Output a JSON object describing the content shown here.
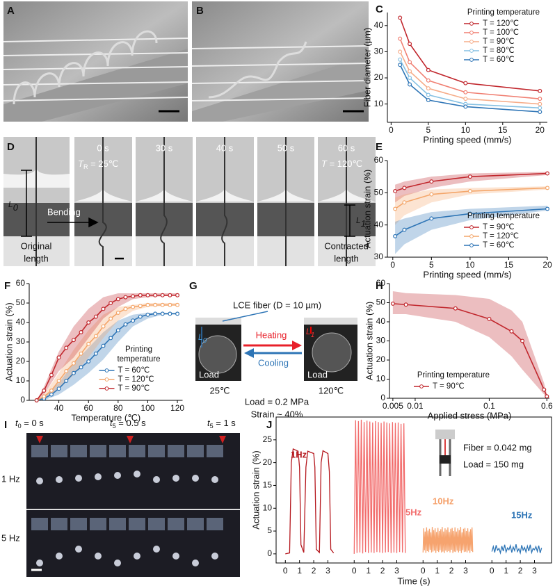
{
  "chart_data": [
    {
      "type": "line",
      "xlabel": "Printing speed (mm/s)",
      "ylabel": "Fiber diameter (µm)",
      "legend_title": "Printing temperature",
      "legend": "upper right",
      "x": [
        1.2,
        2.5,
        5,
        10,
        20
      ],
      "xlim": [
        -0.5,
        21
      ],
      "xticks": [
        0,
        5,
        10,
        15,
        20
      ],
      "ylim": [
        3,
        45
      ],
      "yticks": [
        10,
        20,
        30,
        40
      ],
      "series": [
        {
          "name": "T = 120℃",
          "color": "#c1272d",
          "values": [
            43,
            33,
            23,
            18,
            15
          ]
        },
        {
          "name": "T = 100℃",
          "color": "#f07f72",
          "values": [
            35,
            26,
            19,
            14.5,
            12
          ]
        },
        {
          "name": "T = 90℃",
          "color": "#f6ad8a",
          "values": [
            30,
            22.5,
            16,
            12,
            10
          ]
        },
        {
          "name": "T = 80℃",
          "color": "#86c1e3",
          "values": [
            27,
            20,
            13.5,
            10,
            8.5
          ]
        },
        {
          "name": "T = 60℃",
          "color": "#2e75b6",
          "values": [
            25,
            17.5,
            11.5,
            9,
            7
          ]
        }
      ]
    },
    {
      "type": "line",
      "xlabel": "Printing speed (mm/s)",
      "ylabel": "Actuation strain (%)",
      "legend_title": "Printing temperature",
      "legend": "lower right",
      "x": [
        0.3,
        1.5,
        5,
        10,
        20
      ],
      "xlim": [
        -0.7,
        20
      ],
      "xticks": [
        0,
        5,
        10,
        15,
        20
      ],
      "ylim": [
        30,
        60
      ],
      "yticks": [
        30,
        40,
        50,
        60
      ],
      "series": [
        {
          "name": "T = 90℃",
          "color": "#c1272d",
          "values": [
            50.5,
            51.5,
            53.5,
            55,
            56
          ],
          "band": {
            "lower": [
              47,
              49,
              51.5,
              53.5,
              55.5
            ],
            "upper": [
              52.5,
              53.5,
              55,
              56,
              56.5
            ]
          }
        },
        {
          "name": "T = 120℃",
          "color": "#f4a66a",
          "values": [
            45,
            47,
            49.5,
            50.5,
            51.5
          ],
          "band": {
            "lower": [
              40,
              43,
              47,
              49.5,
              51
            ],
            "upper": [
              48.5,
              49.5,
              51,
              51.5,
              52
            ]
          }
        },
        {
          "name": "T = 60℃",
          "color": "#2e75b6",
          "values": [
            36.5,
            38.5,
            42,
            43.5,
            45
          ],
          "band": {
            "lower": [
              31,
              34,
              38.5,
              41.5,
              44.5
            ],
            "upper": [
              41,
              42,
              44,
              45,
              46
            ]
          }
        }
      ]
    },
    {
      "type": "line",
      "xlabel": "Temperature (℃)",
      "ylabel": "Actuation strain (%)",
      "legend_title": [
        "Printing",
        "temperature"
      ],
      "legend": "lower right",
      "x": [
        25,
        30,
        35,
        40,
        45,
        50,
        55,
        60,
        65,
        70,
        75,
        80,
        85,
        90,
        95,
        100,
        105,
        110,
        115,
        120
      ],
      "xlim": [
        20,
        123.5
      ],
      "xticks": [
        40,
        60,
        80,
        100,
        120
      ],
      "ylim": [
        0,
        60
      ],
      "yticks": [
        0,
        10,
        20,
        30,
        40,
        50,
        60
      ],
      "series": [
        {
          "name": "T = 60℃",
          "color": "#2e75b6",
          "values": [
            0,
            1,
            3,
            6,
            10,
            14,
            17,
            20,
            24,
            28,
            32,
            36,
            39,
            41,
            43,
            44,
            44.5,
            44.5,
            44.5,
            44.5
          ],
          "band": {
            "x": [
              25,
              30,
              40,
              50,
              60,
              70,
              80,
              90,
              100,
              110,
              120
            ],
            "lower": [
              0,
              0,
              3,
              8,
              14,
              21,
              30,
              38,
              42,
              44,
              44.5
            ],
            "upper": [
              0,
              2,
              9,
              19,
              27,
              35,
              41,
              44,
              45,
              45,
              45
            ]
          }
        },
        {
          "name": "T = 120℃",
          "color": "#f4a66a",
          "values": [
            0,
            2,
            5,
            10,
            15,
            19,
            24,
            29,
            33,
            38,
            42,
            45,
            47,
            48,
            48.5,
            49,
            49,
            49,
            49,
            49
          ],
          "band": {
            "x": [
              25,
              30,
              40,
              50,
              60,
              70,
              80,
              90,
              100,
              110,
              120
            ],
            "lower": [
              0,
              1,
              6,
              13,
              22,
              32,
              41,
              46,
              48,
              48.5,
              49
            ],
            "upper": [
              0,
              3,
              14,
              26,
              36,
              44,
              48,
              49,
              50,
              50,
              50
            ]
          }
        },
        {
          "name": "T = 90℃",
          "color": "#c1272d",
          "values": [
            0,
            5,
            13,
            22,
            27,
            31,
            35,
            40,
            43,
            47,
            50,
            52,
            53,
            53.5,
            54,
            54,
            54,
            54,
            54,
            54
          ],
          "band": {
            "x": [
              25,
              30,
              40,
              50,
              60,
              70,
              80,
              90,
              100,
              110,
              120
            ],
            "lower": [
              0,
              3,
              15,
              22,
              32,
              42,
              48,
              52,
              53,
              53.5,
              54
            ],
            "upper": [
              0,
              7,
              25,
              38,
              47,
              53,
              55,
              55,
              55,
              55,
              55
            ]
          }
        }
      ]
    },
    {
      "type": "line",
      "xlabel": "Applied stress (MPa)",
      "ylabel": "Actuation strain (%)",
      "legend_title": "Printing temperature",
      "legend": "lower left",
      "xlog": true,
      "x": [
        0.005,
        0.0075,
        0.035,
        0.1,
        0.2,
        0.28,
        0.55,
        0.6
      ],
      "xlim": [
        0.0045,
        0.65
      ],
      "xticks": [
        0.005,
        0.01,
        0.1,
        0.6
      ],
      "ylim": [
        0,
        60
      ],
      "yticks": [
        0,
        10,
        20,
        30,
        40,
        50,
        60
      ],
      "series": [
        {
          "name": "T = 90℃",
          "color": "#c1272d",
          "values": [
            49.5,
            49,
            47,
            41.5,
            35,
            30,
            4.5,
            1
          ],
          "band": {
            "lower": [
              44,
              44,
              40,
              32,
              22,
              15,
              2,
              0
            ],
            "upper": [
              56,
              55,
              54,
              52,
              46,
              40,
              8,
              2
            ]
          }
        }
      ]
    },
    {
      "type": "multi-line",
      "xlabel": "Time (s)",
      "ylabel": "Actuation strain (%)",
      "xlim": [
        -0.65,
        4.2
      ],
      "xticks": [
        0,
        1,
        2,
        3
      ],
      "ylim": [
        -2,
        30
      ],
      "yticks": [
        0,
        5,
        10,
        15,
        20,
        25
      ],
      "notes": [
        "Fiber = 0.042 mg",
        "Load = 150 mg"
      ],
      "series": [
        {
          "name": "1Hz",
          "color": "#b5171d",
          "x": [
            0,
            0.3,
            0.42,
            0.55,
            0.9,
            1.0,
            1.1,
            1.3,
            1.45,
            1.58,
            2.0,
            2.08,
            2.18,
            2.4,
            2.52,
            2.65,
            3.0,
            3.1,
            3.2,
            3.4
          ],
          "values": [
            0,
            0.2,
            20,
            23,
            22.5,
            19,
            2,
            0.3,
            19,
            22.5,
            22,
            19,
            1,
            0.3,
            20,
            22.6,
            22,
            18,
            1,
            0.2
          ]
        },
        {
          "name": "5Hz",
          "color": "#f26b6b",
          "x": [
            0,
            0.1,
            0.2,
            0.3,
            0.4,
            0.5,
            0.6,
            0.7,
            0.8,
            0.9,
            1,
            1.1,
            1.2,
            1.3,
            1.4,
            1.5,
            1.6,
            1.7,
            1.8,
            1.9,
            2,
            2.1,
            2.2,
            2.3,
            2.4,
            2.5,
            2.6,
            2.7,
            2.8,
            2.9,
            3,
            3.1,
            3.2,
            3.3,
            3.4,
            3.5,
            3.6
          ],
          "values": [
            0,
            29.3,
            0.2,
            29.1,
            0.3,
            29.4,
            0.1,
            28.9,
            0.4,
            29.2,
            0.2,
            29.0,
            0.3,
            28.8,
            0.2,
            29.1,
            0.4,
            28.9,
            0.3,
            28.7,
            0.2,
            29.0,
            0.3,
            28.8,
            0.4,
            28.6,
            0.2,
            28.9,
            0.3,
            28.7,
            0.2,
            28.8,
            0.4,
            28.5,
            0.3,
            28.6,
            0.2
          ]
        },
        {
          "name": "10Hz",
          "color": "#f6a36e",
          "x": [
            0,
            0.05,
            0.1,
            0.15,
            0.2,
            0.25,
            0.3,
            0.35,
            0.4,
            0.45,
            0.5,
            0.55,
            0.6,
            0.65,
            0.7,
            0.75,
            0.8,
            0.85,
            0.9,
            0.95,
            1,
            1.05,
            1.1,
            1.15,
            1.2,
            1.25,
            1.3,
            1.35,
            1.4,
            1.45,
            1.5,
            1.55,
            1.6,
            1.65,
            1.7,
            1.75,
            1.8,
            1.85,
            1.9,
            1.95,
            2,
            2.05,
            2.1,
            2.15,
            2.2,
            2.25,
            2.3,
            2.35,
            2.4,
            2.45,
            2.5,
            2.55,
            2.6,
            2.65,
            2.7,
            2.75,
            2.8,
            2.85,
            2.9,
            2.95,
            3,
            3.05,
            3.1,
            3.15,
            3.2,
            3.25,
            3.3,
            3.35,
            3.4,
            3.45,
            3.5
          ],
          "values": [
            0.3,
            5.6,
            0.8,
            4.9,
            0.2,
            5.8,
            0.6,
            5.1,
            0.4,
            5.5,
            0.9,
            4.7,
            0.3,
            5.9,
            0.5,
            5.2,
            0.7,
            5.6,
            0.2,
            4.8,
            0.6,
            5.7,
            0.4,
            5.0,
            0.8,
            5.4,
            0.3,
            5.9,
            0.5,
            4.9,
            0.2,
            5.6,
            0.7,
            5.3,
            0.4,
            5.8,
            0.6,
            4.8,
            0.3,
            5.5,
            0.9,
            5.7,
            0.2,
            5.0,
            0.5,
            5.8,
            0.4,
            4.9,
            0.7,
            5.6,
            0.3,
            5.2,
            0.6,
            5.9,
            0.2,
            4.7,
            0.8,
            5.5,
            0.4,
            5.7,
            0.5,
            5.0,
            0.3,
            5.6,
            0.7,
            4.9,
            0.2,
            5.4,
            0.6,
            5.8,
            0.4
          ]
        },
        {
          "name": "15Hz",
          "color": "#2e75b6",
          "x": [
            0,
            0.1,
            0.2,
            0.3,
            0.4,
            0.5,
            0.6,
            0.7,
            0.8,
            0.9,
            1,
            1.1,
            1.2,
            1.3,
            1.4,
            1.5,
            1.6,
            1.7,
            1.8,
            1.9,
            2,
            2.1,
            2.2,
            2.3,
            2.4,
            2.5,
            2.6,
            2.7,
            2.8,
            2.9,
            3,
            3.1,
            3.2,
            3.3,
            3.4,
            3.5
          ],
          "values": [
            0.5,
            1.6,
            0.3,
            1.9,
            0.8,
            1.2,
            0.2,
            1.7,
            0.6,
            2.0,
            0.4,
            1.3,
            0.9,
            1.8,
            0.3,
            1.5,
            0.7,
            2.1,
            0.5,
            1.1,
            0.2,
            1.9,
            0.8,
            1.4,
            0.4,
            1.7,
            0.6,
            2.0,
            0.3,
            1.2,
            0.9,
            1.6,
            0.5,
            1.8,
            0.2,
            1.3
          ]
        }
      ]
    }
  ],
  "panel_letters": [
    "A",
    "B",
    "C",
    "D",
    "E",
    "F",
    "G",
    "H",
    "I",
    "J"
  ],
  "panel_d": {
    "times": [
      "0 s",
      "30 s",
      "40 s",
      "50 s",
      "60 s"
    ],
    "t_r": {
      "main": "T",
      "sub": "R",
      "rest": " = 25℃"
    },
    "t_hot": {
      "main": "T",
      "rest": " = 120℃"
    },
    "l0": {
      "main": "L",
      "sub": "0"
    },
    "l1": {
      "main": "L",
      "sub": "1"
    },
    "bending": "Bending",
    "original": [
      "Original",
      "length"
    ],
    "contracted": [
      "Contracted",
      "length"
    ]
  },
  "panel_g": {
    "fiber": "LCE fiber  (D = 10 µm)",
    "l0": {
      "main": "L",
      "sub": "0"
    },
    "l1": {
      "main": "L",
      "sub": "1"
    },
    "heating": "Heating",
    "cooling": "Cooling",
    "load_left": "Load",
    "load_right": "Load",
    "temp_left": "25℃",
    "temp_right": "120℃",
    "load": "Load = 0.2 MPa",
    "strain": "Strain ~ 40%"
  },
  "panel_i": {
    "t0": {
      "main": "t",
      "sub": "0",
      "rest": " = 0 s"
    },
    "t_mid": {
      "main": "t",
      "sub": "5",
      "rest": " = 0.5 s"
    },
    "t_end": {
      "main": "t",
      "sub": "5",
      "rest": " = 1 s"
    },
    "row1": "1 Hz",
    "row2": "5 Hz"
  }
}
